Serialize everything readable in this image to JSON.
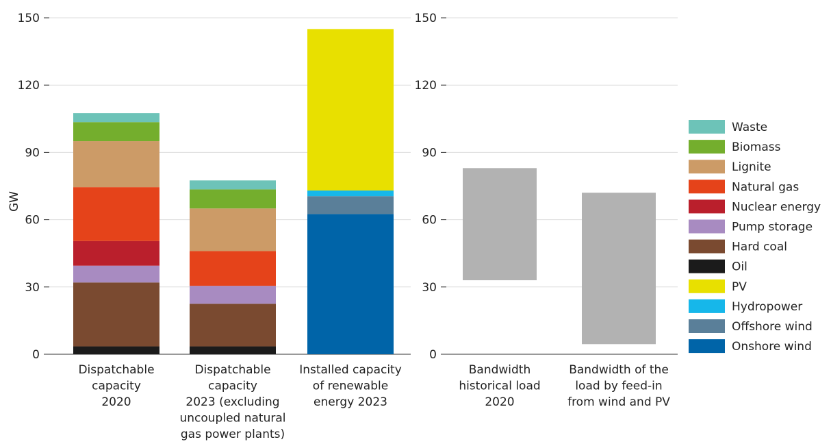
{
  "chart_data": [
    {
      "type": "bar",
      "stacked": true,
      "ylabel": "GW",
      "ylim": [
        0,
        150
      ],
      "yticks": [
        "0",
        "30",
        "60",
        "90",
        "120",
        "150"
      ],
      "grid": true,
      "categories": [
        [
          "Dispatchable",
          "capacity",
          "2020"
        ],
        [
          "Dispatchable",
          "capacity",
          "2023 (excluding",
          "uncoupled natural",
          "gas power plants)"
        ],
        [
          "Installed capacity",
          "of renewable",
          "energy 2023"
        ]
      ],
      "series": [
        {
          "name": "Onshore wind",
          "color": "#0064a8",
          "values": [
            0,
            0,
            62.5
          ]
        },
        {
          "name": "Offshore wind",
          "color": "#5a7f99",
          "values": [
            0,
            0,
            8
          ]
        },
        {
          "name": "Hydropower",
          "color": "#16b7ea",
          "values": [
            0,
            0,
            2.5
          ]
        },
        {
          "name": "PV",
          "color": "#e8e000",
          "values": [
            0,
            0,
            72
          ]
        },
        {
          "name": "Oil",
          "color": "#1b1b1b",
          "values": [
            3.5,
            3.5,
            0
          ]
        },
        {
          "name": "Hard coal",
          "color": "#7a4a30",
          "values": [
            28.5,
            19,
            0
          ]
        },
        {
          "name": "Pump storage",
          "color": "#a88bc1",
          "values": [
            7.5,
            8,
            0
          ]
        },
        {
          "name": "Nuclear energy",
          "color": "#ba1f2c",
          "values": [
            11,
            0,
            0
          ]
        },
        {
          "name": "Natural gas",
          "color": "#e5431a",
          "values": [
            24,
            15.5,
            0
          ]
        },
        {
          "name": "Lignite",
          "color": "#cc9b67",
          "values": [
            20.5,
            19,
            0
          ]
        },
        {
          "name": "Biomass",
          "color": "#74ae2d",
          "values": [
            8.5,
            8.5,
            0
          ]
        },
        {
          "name": "Waste",
          "color": "#6dc3b8",
          "values": [
            4,
            4,
            0
          ]
        }
      ]
    },
    {
      "type": "bar",
      "subtype": "floating-range",
      "ylim": [
        0,
        150
      ],
      "yticks": [
        "0",
        "30",
        "60",
        "90",
        "120",
        "150"
      ],
      "grid": true,
      "color": "#b2b2b2",
      "categories": [
        [
          "Bandwidth",
          "historical load",
          "2020"
        ],
        [
          "Bandwidth of the",
          "load by feed-in",
          "from wind and PV"
        ]
      ],
      "ranges": [
        [
          33,
          83
        ],
        [
          4.5,
          72
        ]
      ]
    }
  ],
  "legend": {
    "position": "right",
    "items": [
      {
        "label": "Waste",
        "color": "#6dc3b8"
      },
      {
        "label": "Biomass",
        "color": "#74ae2d"
      },
      {
        "label": "Lignite",
        "color": "#cc9b67"
      },
      {
        "label": "Natural gas",
        "color": "#e5431a"
      },
      {
        "label": "Nuclear energy",
        "color": "#ba1f2c"
      },
      {
        "label": "Pump storage",
        "color": "#a88bc1"
      },
      {
        "label": "Hard coal",
        "color": "#7a4a30"
      },
      {
        "label": "Oil",
        "color": "#1b1b1b"
      },
      {
        "label": "PV",
        "color": "#e8e000"
      },
      {
        "label": "Hydropower",
        "color": "#16b7ea"
      },
      {
        "label": "Offshore wind",
        "color": "#5a7f99"
      },
      {
        "label": "Onshore wind",
        "color": "#0064a8"
      }
    ]
  }
}
